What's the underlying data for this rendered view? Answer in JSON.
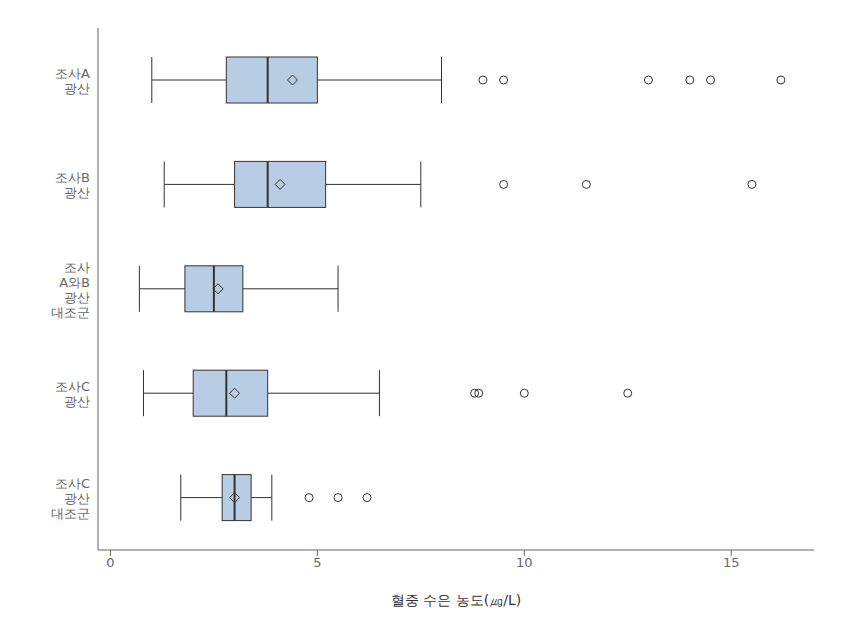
{
  "chart_data": {
    "type": "box",
    "orientation": "horizontal",
    "categories": [
      "조사A\n광산",
      "조사B\n광산",
      "조사\nA와B\n광산\n대조군",
      "조사C\n광산",
      "조사C\n광산\n대조군"
    ],
    "whisker_low": [
      1.0,
      1.3,
      0.7,
      0.8,
      1.7
    ],
    "q1": [
      2.8,
      3.0,
      1.8,
      2.0,
      2.7
    ],
    "median": [
      3.8,
      3.8,
      2.5,
      2.8,
      3.0
    ],
    "q3": [
      5.0,
      5.2,
      3.2,
      3.8,
      3.4
    ],
    "whisker_high": [
      8.0,
      7.5,
      5.5,
      6.5,
      3.9
    ],
    "mean": [
      4.4,
      4.1,
      2.6,
      3.0,
      3.0
    ],
    "outliers": [
      [
        9.0,
        9.5,
        13.0,
        14.0,
        14.5,
        16.2
      ],
      [
        9.5,
        11.5,
        15.5
      ],
      [],
      [
        8.8,
        8.9,
        10.0,
        12.5
      ],
      [
        4.8,
        5.5,
        6.2
      ]
    ],
    "xlabel": "혈중 수은  농도(㎍/L)",
    "xlim": [
      -0.3,
      17.0
    ],
    "xticks": [
      0,
      5,
      10,
      15
    ],
    "color": "#b8cce4",
    "marker": "diamond",
    "grid": false
  }
}
